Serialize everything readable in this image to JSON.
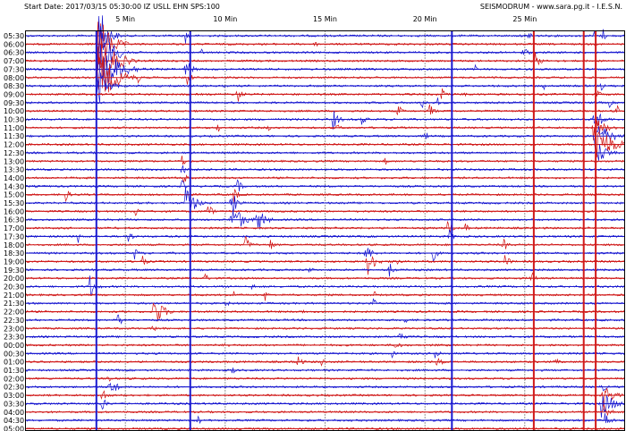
{
  "header": {
    "left": "Start Date: 2017/03/15 05:30:00 IZ USLL EHN SPS:100",
    "right": "SEISMODRUM - www.sara.pg.it - I.E.S.N."
  },
  "colors": {
    "line_a": "#1a1ad0",
    "line_b": "#d01a1a",
    "grid": "#000000",
    "frame": "#000000"
  },
  "chart_data": {
    "type": "line",
    "description_kind": "helicorder",
    "minute_labels": [
      "5 Min",
      "10 Min",
      "15 Min",
      "20 Min",
      "25 Min"
    ],
    "minute_ticks": [
      5,
      10,
      15,
      20,
      25
    ],
    "x_range_minutes": [
      0,
      30
    ],
    "row_labels": [
      "05:30",
      "06:00",
      "06:30",
      "07:00",
      "07:30",
      "08:00",
      "08:30",
      "09:00",
      "09:30",
      "10:00",
      "10:30",
      "11:00",
      "11:30",
      "12:00",
      "12:30",
      "13:00",
      "13:30",
      "14:00",
      "14:30",
      "15:00",
      "15:30",
      "16:00",
      "16:30",
      "17:00",
      "17:30",
      "18:00",
      "18:30",
      "19:00",
      "19:30",
      "20:00",
      "20:30",
      "21:00",
      "21:30",
      "22:00",
      "22:30",
      "23:00",
      "23:30",
      "00:00",
      "00:30",
      "01:00",
      "01:30",
      "02:00",
      "02:30",
      "03:00",
      "03:30",
      "04:00",
      "04:30",
      "05:00"
    ],
    "line_colors": [
      "blue",
      "red"
    ],
    "events": [
      {
        "row": 0,
        "minute": 3.6,
        "amp": 44,
        "dur": 1.2
      },
      {
        "row": 0,
        "minute": 8.0,
        "amp": 10,
        "dur": 0.4
      },
      {
        "row": 0,
        "minute": 25.2,
        "amp": 9,
        "dur": 0.4
      },
      {
        "row": 0,
        "minute": 28.4,
        "amp": 12,
        "dur": 0.3
      },
      {
        "row": 0,
        "minute": 28.9,
        "amp": 12,
        "dur": 0.3
      },
      {
        "row": 1,
        "minute": 3.6,
        "amp": 40,
        "dur": 1.6
      },
      {
        "row": 1,
        "minute": 14.5,
        "amp": 6,
        "dur": 0.3
      },
      {
        "row": 1,
        "minute": 18.5,
        "amp": 5,
        "dur": 0.3
      },
      {
        "row": 2,
        "minute": 3.6,
        "amp": 40,
        "dur": 1.8
      },
      {
        "row": 2,
        "minute": 8.8,
        "amp": 5,
        "dur": 0.3
      },
      {
        "row": 2,
        "minute": 24.9,
        "amp": 10,
        "dur": 0.6
      },
      {
        "row": 3,
        "minute": 3.6,
        "amp": 42,
        "dur": 2.0
      },
      {
        "row": 3,
        "minute": 25.5,
        "amp": 14,
        "dur": 0.6
      },
      {
        "row": 4,
        "minute": 3.6,
        "amp": 40,
        "dur": 2.4
      },
      {
        "row": 4,
        "minute": 8.0,
        "amp": 14,
        "dur": 0.8
      },
      {
        "row": 4,
        "minute": 4.8,
        "amp": 8,
        "dur": 0.4
      },
      {
        "row": 4,
        "minute": 22.5,
        "amp": 6,
        "dur": 0.3
      },
      {
        "row": 5,
        "minute": 3.6,
        "amp": 36,
        "dur": 2.2
      },
      {
        "row": 5,
        "minute": 5.6,
        "amp": 8,
        "dur": 0.4
      },
      {
        "row": 5,
        "minute": 8.1,
        "amp": 10,
        "dur": 0.6
      },
      {
        "row": 6,
        "minute": 3.6,
        "amp": 26,
        "dur": 1.2
      },
      {
        "row": 6,
        "minute": 25.9,
        "amp": 8,
        "dur": 0.4
      },
      {
        "row": 6,
        "minute": 28.8,
        "amp": 8,
        "dur": 0.4
      },
      {
        "row": 7,
        "minute": 10.6,
        "amp": 12,
        "dur": 0.6
      },
      {
        "row": 7,
        "minute": 20.8,
        "amp": 10,
        "dur": 0.6
      },
      {
        "row": 7,
        "minute": 22.0,
        "amp": 8,
        "dur": 0.4
      },
      {
        "row": 7,
        "minute": 28.6,
        "amp": 10,
        "dur": 0.4
      },
      {
        "row": 8,
        "minute": 19.8,
        "amp": 10,
        "dur": 0.6
      },
      {
        "row": 8,
        "minute": 20.6,
        "amp": 8,
        "dur": 0.4
      },
      {
        "row": 8,
        "minute": 29.2,
        "amp": 8,
        "dur": 0.4
      },
      {
        "row": 9,
        "minute": 18.6,
        "amp": 10,
        "dur": 0.6
      },
      {
        "row": 9,
        "minute": 20.2,
        "amp": 12,
        "dur": 0.6
      },
      {
        "row": 9,
        "minute": 29.6,
        "amp": 8,
        "dur": 0.4
      },
      {
        "row": 10,
        "minute": 15.4,
        "amp": 12,
        "dur": 0.8
      },
      {
        "row": 10,
        "minute": 16.8,
        "amp": 10,
        "dur": 0.6
      },
      {
        "row": 10,
        "minute": 28.4,
        "amp": 16,
        "dur": 1.2
      },
      {
        "row": 11,
        "minute": 9.6,
        "amp": 8,
        "dur": 0.4
      },
      {
        "row": 11,
        "minute": 12.1,
        "amp": 6,
        "dur": 0.4
      },
      {
        "row": 11,
        "minute": 15.6,
        "amp": 8,
        "dur": 0.4
      },
      {
        "row": 11,
        "minute": 28.4,
        "amp": 18,
        "dur": 1.4
      },
      {
        "row": 12,
        "minute": 20.0,
        "amp": 8,
        "dur": 0.4
      },
      {
        "row": 12,
        "minute": 28.5,
        "amp": 22,
        "dur": 1.8
      },
      {
        "row": 12,
        "minute": 29.5,
        "amp": 10,
        "dur": 0.4
      },
      {
        "row": 13,
        "minute": 28.6,
        "amp": 26,
        "dur": 2.0
      },
      {
        "row": 14,
        "minute": 28.7,
        "amp": 14,
        "dur": 1.2
      },
      {
        "row": 15,
        "minute": 7.8,
        "amp": 10,
        "dur": 0.5
      },
      {
        "row": 15,
        "minute": 18.0,
        "amp": 6,
        "dur": 0.3
      },
      {
        "row": 16,
        "minute": 7.8,
        "amp": 10,
        "dur": 0.5
      },
      {
        "row": 17,
        "minute": 7.9,
        "amp": 8,
        "dur": 0.5
      },
      {
        "row": 18,
        "minute": 7.8,
        "amp": 10,
        "dur": 0.5
      },
      {
        "row": 18,
        "minute": 10.6,
        "amp": 10,
        "dur": 0.6
      },
      {
        "row": 19,
        "minute": 2.0,
        "amp": 10,
        "dur": 0.5
      },
      {
        "row": 19,
        "minute": 10.4,
        "amp": 12,
        "dur": 0.6
      },
      {
        "row": 20,
        "minute": 8.0,
        "amp": 22,
        "dur": 1.2
      },
      {
        "row": 20,
        "minute": 10.3,
        "amp": 16,
        "dur": 0.8
      },
      {
        "row": 21,
        "minute": 5.5,
        "amp": 8,
        "dur": 0.5
      },
      {
        "row": 21,
        "minute": 9.1,
        "amp": 12,
        "dur": 0.6
      },
      {
        "row": 22,
        "minute": 10.3,
        "amp": 22,
        "dur": 1.4
      },
      {
        "row": 22,
        "minute": 11.6,
        "amp": 18,
        "dur": 1.0
      },
      {
        "row": 23,
        "minute": 21.1,
        "amp": 12,
        "dur": 0.6
      },
      {
        "row": 23,
        "minute": 22.0,
        "amp": 8,
        "dur": 0.4
      },
      {
        "row": 24,
        "minute": 2.6,
        "amp": 10,
        "dur": 0.4
      },
      {
        "row": 24,
        "minute": 5.1,
        "amp": 10,
        "dur": 0.6
      },
      {
        "row": 24,
        "minute": 21.2,
        "amp": 10,
        "dur": 0.6
      },
      {
        "row": 25,
        "minute": 11.0,
        "amp": 12,
        "dur": 0.6
      },
      {
        "row": 25,
        "minute": 12.2,
        "amp": 10,
        "dur": 0.6
      },
      {
        "row": 25,
        "minute": 23.9,
        "amp": 10,
        "dur": 0.6
      },
      {
        "row": 26,
        "minute": 5.4,
        "amp": 10,
        "dur": 0.6
      },
      {
        "row": 26,
        "minute": 17.0,
        "amp": 14,
        "dur": 0.8
      },
      {
        "row": 26,
        "minute": 20.4,
        "amp": 10,
        "dur": 0.6
      },
      {
        "row": 27,
        "minute": 5.8,
        "amp": 10,
        "dur": 0.6
      },
      {
        "row": 27,
        "minute": 17.1,
        "amp": 18,
        "dur": 1.0
      },
      {
        "row": 27,
        "minute": 18.4,
        "amp": 10,
        "dur": 0.6
      },
      {
        "row": 27,
        "minute": 24.0,
        "amp": 10,
        "dur": 0.6
      },
      {
        "row": 28,
        "minute": 14.2,
        "amp": 8,
        "dur": 0.4
      },
      {
        "row": 28,
        "minute": 18.2,
        "amp": 10,
        "dur": 0.6
      },
      {
        "row": 29,
        "minute": 9.0,
        "amp": 8,
        "dur": 0.4
      },
      {
        "row": 29,
        "minute": 25.3,
        "amp": 10,
        "dur": 0.6
      },
      {
        "row": 30,
        "minute": 3.2,
        "amp": 16,
        "dur": 0.8
      },
      {
        "row": 30,
        "minute": 11.3,
        "amp": 8,
        "dur": 0.4
      },
      {
        "row": 31,
        "minute": 10.4,
        "amp": 8,
        "dur": 0.4
      },
      {
        "row": 31,
        "minute": 12.0,
        "amp": 8,
        "dur": 0.4
      },
      {
        "row": 31,
        "minute": 17.4,
        "amp": 8,
        "dur": 0.4
      },
      {
        "row": 32,
        "minute": 10.0,
        "amp": 8,
        "dur": 0.4
      },
      {
        "row": 32,
        "minute": 17.4,
        "amp": 8,
        "dur": 0.4
      },
      {
        "row": 33,
        "minute": 6.4,
        "amp": 22,
        "dur": 1.2
      },
      {
        "row": 33,
        "minute": 13.8,
        "amp": 6,
        "dur": 0.4
      },
      {
        "row": 34,
        "minute": 4.6,
        "amp": 10,
        "dur": 0.6
      },
      {
        "row": 34,
        "minute": 19.0,
        "amp": 8,
        "dur": 0.4
      },
      {
        "row": 35,
        "minute": 6.4,
        "amp": 8,
        "dur": 0.4
      },
      {
        "row": 36,
        "minute": 18.7,
        "amp": 12,
        "dur": 0.6
      },
      {
        "row": 37,
        "minute": 18.5,
        "amp": 10,
        "dur": 0.6
      },
      {
        "row": 37,
        "minute": 10.0,
        "amp": 8,
        "dur": 0.4
      },
      {
        "row": 38,
        "minute": 18.3,
        "amp": 8,
        "dur": 0.4
      },
      {
        "row": 38,
        "minute": 20.5,
        "amp": 10,
        "dur": 0.6
      },
      {
        "row": 39,
        "minute": 13.6,
        "amp": 10,
        "dur": 0.6
      },
      {
        "row": 39,
        "minute": 14.8,
        "amp": 8,
        "dur": 0.4
      },
      {
        "row": 39,
        "minute": 20.6,
        "amp": 12,
        "dur": 0.6
      },
      {
        "row": 39,
        "minute": 26.6,
        "amp": 8,
        "dur": 0.4
      },
      {
        "row": 40,
        "minute": 10.3,
        "amp": 8,
        "dur": 0.4
      },
      {
        "row": 41,
        "minute": 4.1,
        "amp": 8,
        "dur": 0.4
      },
      {
        "row": 42,
        "minute": 4.2,
        "amp": 16,
        "dur": 0.8
      },
      {
        "row": 42,
        "minute": 28.8,
        "amp": 10,
        "dur": 0.6
      },
      {
        "row": 43,
        "minute": 3.8,
        "amp": 12,
        "dur": 0.6
      },
      {
        "row": 43,
        "minute": 28.9,
        "amp": 16,
        "dur": 1.2
      },
      {
        "row": 44,
        "minute": 3.8,
        "amp": 10,
        "dur": 0.6
      },
      {
        "row": 44,
        "minute": 28.8,
        "amp": 18,
        "dur": 1.6
      },
      {
        "row": 45,
        "minute": 28.9,
        "amp": 12,
        "dur": 1.0
      },
      {
        "row": 46,
        "minute": 8.6,
        "amp": 8,
        "dur": 0.4
      },
      {
        "row": 46,
        "minute": 29.0,
        "amp": 10,
        "dur": 0.8
      }
    ],
    "long_spikes": [
      {
        "minute": 3.55,
        "color": "blue"
      },
      {
        "minute": 8.25,
        "color": "blue"
      },
      {
        "minute": 21.35,
        "color": "blue"
      },
      {
        "minute": 25.45,
        "color": "red"
      },
      {
        "minute": 27.95,
        "color": "red"
      },
      {
        "minute": 28.55,
        "color": "red"
      }
    ]
  }
}
